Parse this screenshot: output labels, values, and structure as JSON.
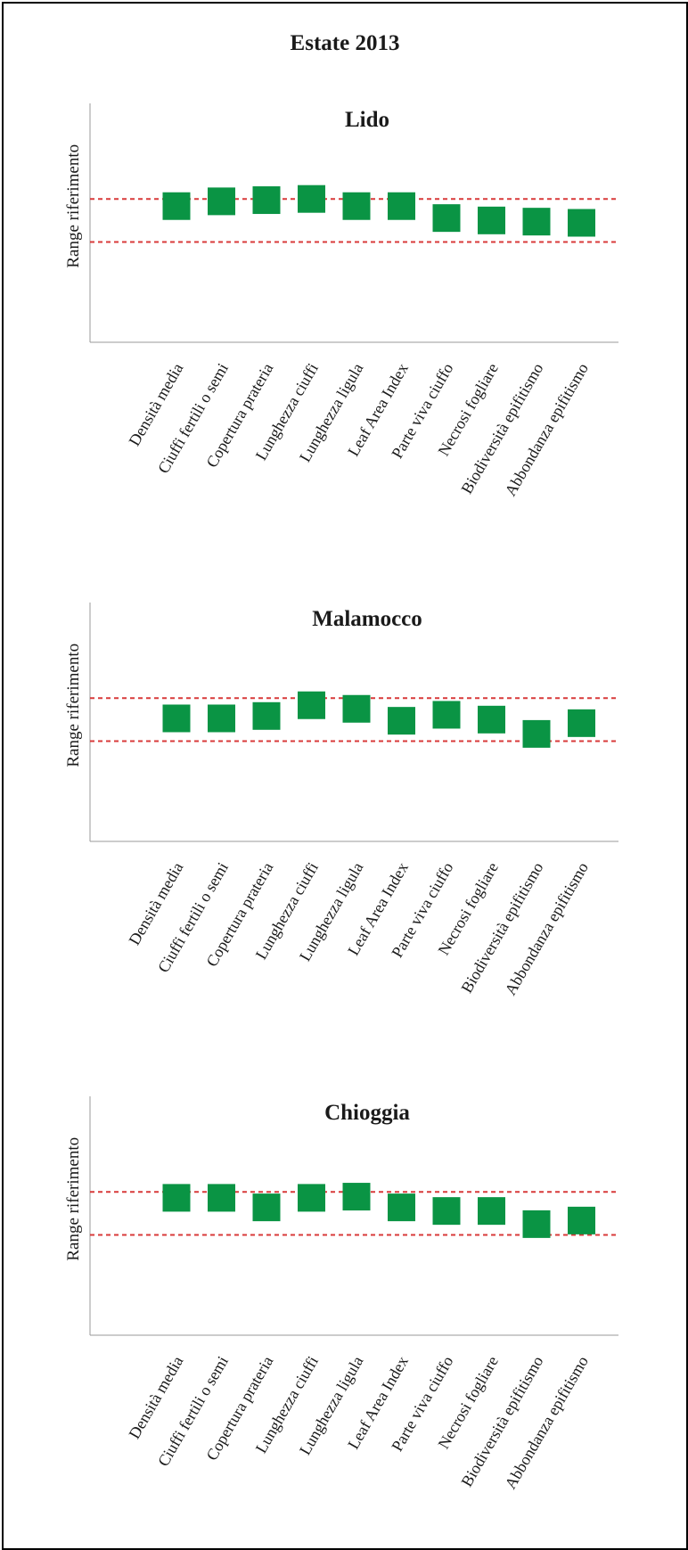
{
  "page_title": "Estate 2013",
  "colors": {
    "marker": "#0a9444",
    "reference_line": "#d83a3a",
    "axis": "#999999"
  },
  "chart_data": [
    {
      "type": "scatter",
      "title": "Lido",
      "ylabel": "Range riferimento",
      "ylim": [
        0,
        1
      ],
      "reference_range": [
        0.42,
        0.6
      ],
      "categories": [
        "Densità media",
        "Ciuffi fertili o semi",
        "Copertura prateria",
        "Lunghezza ciuffi",
        "Lunghezza ligula",
        "Leaf Area Index",
        "Parte viva ciuffo",
        "Necrosi fogliare",
        "Biodiversità epifitismo",
        "Abbondanza epifitismo"
      ],
      "values": [
        0.57,
        0.59,
        0.595,
        0.6,
        0.57,
        0.57,
        0.52,
        0.51,
        0.505,
        0.5
      ]
    },
    {
      "type": "scatter",
      "title": "Malamocco",
      "ylabel": "Range riferimento",
      "ylim": [
        0,
        1
      ],
      "reference_range": [
        0.42,
        0.6
      ],
      "categories": [
        "Densità media",
        "Ciuffi fertili o semi",
        "Copertura prateria",
        "Lunghezza ciuffi",
        "Lunghezza ligula",
        "Leaf Area Index",
        "Parte viva ciuffo",
        "Necrosi fogliare",
        "Biodiversità epifitismo",
        "Abbondanza epifitismo"
      ],
      "values": [
        0.515,
        0.515,
        0.525,
        0.57,
        0.555,
        0.505,
        0.53,
        0.51,
        0.45,
        0.495
      ]
    },
    {
      "type": "scatter",
      "title": "Chioggia",
      "ylabel": "Range riferimento",
      "ylim": [
        0,
        1
      ],
      "reference_range": [
        0.42,
        0.6
      ],
      "categories": [
        "Densità media",
        "Ciuffi fertili o semi",
        "Copertura prateria",
        "Lunghezza ciuffi",
        "Lunghezza ligula",
        "Leaf Area Index",
        "Parte viva ciuffo",
        "Necrosi fogliare",
        "Biodiversità epifitismo",
        "Abbondanza epifitismo"
      ],
      "values": [
        0.575,
        0.575,
        0.535,
        0.575,
        0.58,
        0.535,
        0.52,
        0.52,
        0.465,
        0.48
      ]
    }
  ]
}
